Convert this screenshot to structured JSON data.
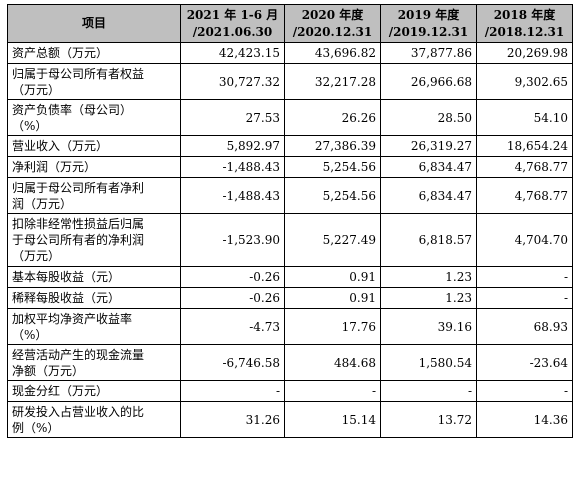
{
  "table": {
    "headers": [
      [
        "项目"
      ],
      [
        "2021 年 1-6 月",
        "/2021.06.30"
      ],
      [
        "2020 年度",
        "/2020.12.31"
      ],
      [
        "2019 年度",
        "/2019.12.31"
      ],
      [
        "2018 年度",
        "/2018.12.31"
      ]
    ],
    "rows": [
      {
        "label": [
          "资产总额（万元）"
        ],
        "values": [
          "42,423.15",
          "43,696.82",
          "37,877.86",
          "20,269.98"
        ]
      },
      {
        "label": [
          "归属于母公司所有者权益",
          "（万元）"
        ],
        "values": [
          "30,727.32",
          "32,217.28",
          "26,966.68",
          "9,302.65"
        ]
      },
      {
        "label": [
          "资产负债率（母公司）",
          "（%）"
        ],
        "values": [
          "27.53",
          "26.26",
          "28.50",
          "54.10"
        ]
      },
      {
        "label": [
          "营业收入（万元）"
        ],
        "values": [
          "5,892.97",
          "27,386.39",
          "26,319.27",
          "18,654.24"
        ]
      },
      {
        "label": [
          "净利润（万元）"
        ],
        "values": [
          "-1,488.43",
          "5,254.56",
          "6,834.47",
          "4,768.77"
        ]
      },
      {
        "label": [
          "归属于母公司所有者净利",
          "润（万元）"
        ],
        "values": [
          "-1,488.43",
          "5,254.56",
          "6,834.47",
          "4,768.77"
        ]
      },
      {
        "label": [
          "扣除非经常性损益后归属",
          "于母公司所有者的净利润",
          "（万元）"
        ],
        "values": [
          "-1,523.90",
          "5,227.49",
          "6,818.57",
          "4,704.70"
        ]
      },
      {
        "label": [
          "基本每股收益（元）"
        ],
        "values": [
          "-0.26",
          "0.91",
          "1.23",
          "-"
        ]
      },
      {
        "label": [
          "稀释每股收益（元）"
        ],
        "values": [
          "-0.26",
          "0.91",
          "1.23",
          "-"
        ]
      },
      {
        "label": [
          "加权平均净资产收益率",
          "（%）"
        ],
        "values": [
          "-4.73",
          "17.76",
          "39.16",
          "68.93"
        ]
      },
      {
        "label": [
          "经营活动产生的现金流量",
          "净额（万元）"
        ],
        "values": [
          "-6,746.58",
          "484.68",
          "1,580.54",
          "-23.64"
        ]
      },
      {
        "label": [
          "现金分红（万元）"
        ],
        "values": [
          "-",
          "-",
          "-",
          "-"
        ]
      },
      {
        "label": [
          "研发投入占营业收入的比",
          "例（%）"
        ],
        "values": [
          "31.26",
          "15.14",
          "13.72",
          "14.36"
        ]
      }
    ]
  }
}
